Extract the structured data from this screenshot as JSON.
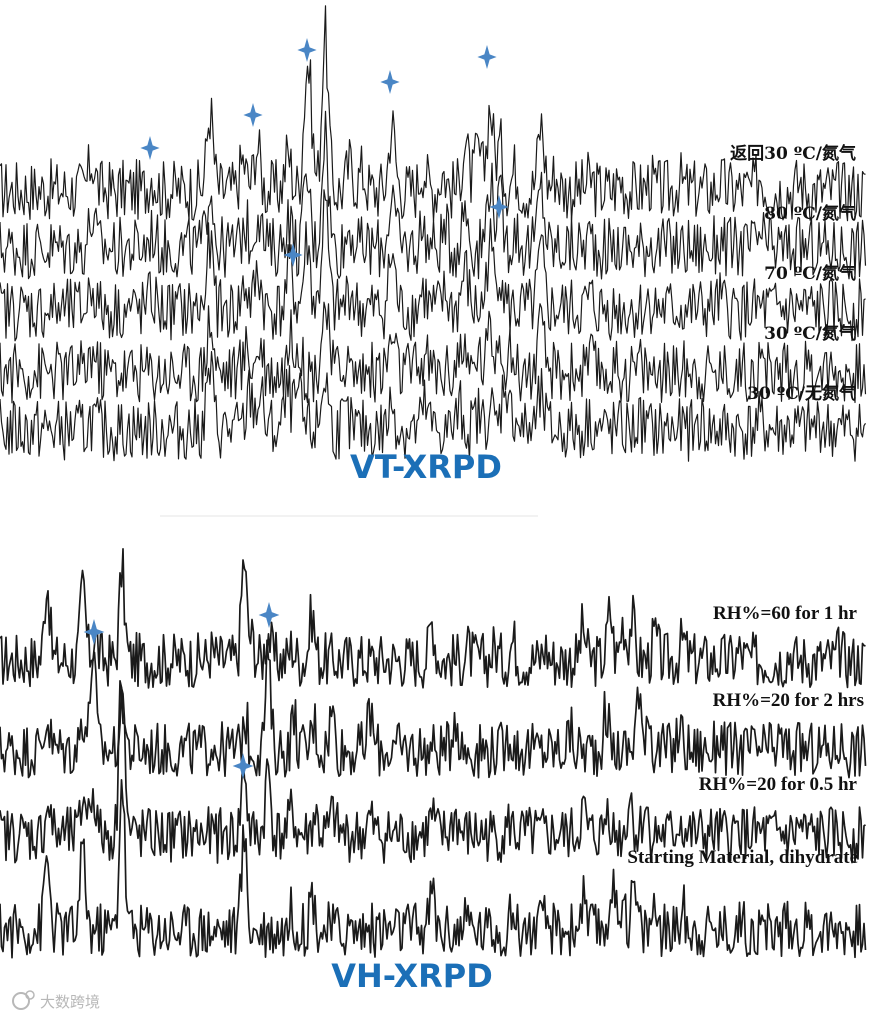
{
  "colors": {
    "trace": "#1a1a1a",
    "title": "#1b6fb7",
    "star": "#4a86c5",
    "watermark": "#b8b8b8"
  },
  "watermark": {
    "text": "大数跨境",
    "icon": "logo-icon"
  },
  "chart_data": [
    {
      "type": "line",
      "title": "VT-XRPD",
      "series": [
        {
          "name": "返回30 ºC/氮气",
          "peaks": [
            [
              92,
              0.55
            ],
            [
              152,
              0.3
            ],
            [
              210,
              1.5
            ],
            [
              243,
              0.55
            ],
            [
              257,
              0.85
            ],
            [
              288,
              0.7
            ],
            [
              306,
              1.6
            ],
            [
              310,
              1.35
            ],
            [
              325,
              3.0
            ],
            [
              350,
              0.5
            ],
            [
              362,
              0.35
            ],
            [
              392,
              1.25
            ],
            [
              423,
              0.45
            ],
            [
              443,
              0.35
            ],
            [
              465,
              0.9
            ],
            [
              478,
              0.75
            ],
            [
              490,
              1.6
            ],
            [
              500,
              0.85
            ],
            [
              515,
              0.4
            ],
            [
              541,
              1.25
            ],
            [
              555,
              0.3
            ],
            [
              590,
              0.2
            ],
            [
              620,
              0.2
            ],
            [
              650,
              0.15
            ],
            [
              680,
              0.15
            ],
            [
              720,
              0.15
            ],
            [
              760,
              0.3
            ],
            [
              800,
              0.15
            ]
          ]
        },
        {
          "name": "80 ºC/氮气",
          "peaks": [
            [
              92,
              0.55
            ],
            [
              152,
              0.3
            ],
            [
              210,
              1.3
            ],
            [
              245,
              0.45
            ],
            [
              258,
              0.75
            ],
            [
              288,
              0.6
            ],
            [
              307,
              1.35
            ],
            [
              325,
              2.3
            ],
            [
              350,
              0.4
            ],
            [
              392,
              1.05
            ],
            [
              423,
              0.4
            ],
            [
              445,
              0.3
            ],
            [
              465,
              0.8
            ],
            [
              490,
              1.35
            ],
            [
              500,
              0.85
            ],
            [
              515,
              0.35
            ],
            [
              541,
              1.15
            ],
            [
              590,
              0.2
            ],
            [
              650,
              0.15
            ],
            [
              720,
              0.15
            ],
            [
              760,
              0.25
            ]
          ]
        },
        {
          "name": "70 ºC/氮气",
          "peaks": [
            [
              92,
              0.5
            ],
            [
              152,
              0.25
            ],
            [
              210,
              1.2
            ],
            [
              245,
              0.45
            ],
            [
              258,
              0.7
            ],
            [
              290,
              0.8
            ],
            [
              307,
              1.3
            ],
            [
              325,
              2.0
            ],
            [
              350,
              0.4
            ],
            [
              392,
              1.05
            ],
            [
              423,
              0.35
            ],
            [
              445,
              0.25
            ],
            [
              465,
              0.75
            ],
            [
              490,
              1.25
            ],
            [
              500,
              0.8
            ],
            [
              541,
              1.05
            ],
            [
              590,
              0.2
            ],
            [
              650,
              0.15
            ],
            [
              720,
              0.15
            ]
          ]
        },
        {
          "name": "30 ºC/氮气",
          "peaks": [
            [
              92,
              0.4
            ],
            [
              210,
              1.0
            ],
            [
              247,
              0.45
            ],
            [
              260,
              0.55
            ],
            [
              290,
              0.55
            ],
            [
              297,
              0.6
            ],
            [
              325,
              1.3
            ],
            [
              345,
              0.25
            ],
            [
              392,
              0.65
            ],
            [
              425,
              0.3
            ],
            [
              460,
              0.45
            ],
            [
              478,
              0.35
            ],
            [
              490,
              0.75
            ],
            [
              500,
              0.75
            ],
            [
              512,
              0.3
            ],
            [
              541,
              0.75
            ],
            [
              590,
              0.2
            ],
            [
              640,
              0.15
            ],
            [
              690,
              0.15
            ],
            [
              760,
              0.15
            ],
            [
              820,
              0.15
            ]
          ]
        },
        {
          "name": "30 ºC/无氮气",
          "peaks": [
            [
              92,
              0.2
            ],
            [
              210,
              1.15
            ],
            [
              250,
              0.7
            ],
            [
              260,
              0.65
            ],
            [
              288,
              0.7
            ],
            [
              298,
              0.65
            ],
            [
              325,
              1.05
            ],
            [
              345,
              0.2
            ],
            [
              392,
              0.5
            ],
            [
              425,
              0.45
            ],
            [
              460,
              0.4
            ],
            [
              478,
              0.3
            ],
            [
              490,
              0.45
            ],
            [
              505,
              1.0
            ],
            [
              515,
              0.3
            ],
            [
              541,
              0.6
            ],
            [
              590,
              0.2
            ],
            [
              640,
              0.15
            ],
            [
              700,
              0.15
            ],
            [
              760,
              0.15
            ],
            [
              820,
              0.15
            ]
          ]
        }
      ]
    },
    {
      "type": "line",
      "title": "VH-XRPD",
      "series": [
        {
          "name": "RH%=60 for 1 hr",
          "peaks": [
            [
              47,
              1.15
            ],
            [
              83,
              1.05
            ],
            [
              95,
              0.35
            ],
            [
              122,
              1.3
            ],
            [
              212,
              0.12
            ],
            [
              244,
              1.45
            ],
            [
              252,
              0.3
            ],
            [
              268,
              0.4
            ],
            [
              292,
              0.2
            ],
            [
              312,
              0.65
            ],
            [
              432,
              0.55
            ],
            [
              468,
              0.15
            ],
            [
              495,
              0.18
            ],
            [
              513,
              0.28
            ],
            [
              545,
              0.18
            ],
            [
              583,
              0.45
            ],
            [
              610,
              0.7
            ],
            [
              623,
              0.55
            ],
            [
              632,
              0.6
            ],
            [
              655,
              0.35
            ],
            [
              683,
              0.28
            ],
            [
              740,
              0.12
            ],
            [
              790,
              0.12
            ],
            [
              840,
              0.12
            ]
          ]
        },
        {
          "name": "RH%=20 for 2 hrs",
          "peaks": [
            [
              47,
              0.45
            ],
            [
              83,
              0.5
            ],
            [
              93,
              1.45
            ],
            [
              122,
              0.8
            ],
            [
              212,
              0.12
            ],
            [
              245,
              0.45
            ],
            [
              268,
              1.3
            ],
            [
              294,
              0.45
            ],
            [
              314,
              0.4
            ],
            [
              332,
              0.55
            ],
            [
              370,
              0.55
            ],
            [
              455,
              0.55
            ],
            [
              510,
              0.25
            ],
            [
              570,
              0.25
            ],
            [
              606,
              0.55
            ],
            [
              638,
              0.75
            ],
            [
              648,
              0.6
            ],
            [
              680,
              0.3
            ],
            [
              720,
              0.2
            ],
            [
              780,
              0.12
            ],
            [
              840,
              0.12
            ]
          ]
        },
        {
          "name": "RH%=20 for 0.5 hr",
          "peaks": [
            [
              48,
              0.45
            ],
            [
              84,
              0.6
            ],
            [
              93,
              0.7
            ],
            [
              122,
              2.5
            ],
            [
              244,
              1.0
            ],
            [
              268,
              0.95
            ],
            [
              292,
              0.35
            ],
            [
              315,
              0.3
            ],
            [
              333,
              0.3
            ],
            [
              370,
              0.22
            ],
            [
              432,
              0.25
            ],
            [
              455,
              0.28
            ],
            [
              510,
              0.15
            ],
            [
              583,
              0.35
            ],
            [
              608,
              0.4
            ],
            [
              630,
              0.55
            ],
            [
              645,
              0.4
            ],
            [
              680,
              0.22
            ],
            [
              740,
              0.12
            ],
            [
              800,
              0.1
            ]
          ]
        },
        {
          "name": "Starting Material, dihydrate",
          "peaks": [
            [
              47,
              1.05
            ],
            [
              83,
              1.15
            ],
            [
              122,
              2.2
            ],
            [
              244,
              1.35
            ],
            [
              292,
              0.25
            ],
            [
              312,
              0.55
            ],
            [
              432,
              0.55
            ],
            [
              468,
              0.12
            ],
            [
              513,
              0.25
            ],
            [
              545,
              0.12
            ],
            [
              583,
              0.45
            ],
            [
              612,
              0.65
            ],
            [
              623,
              0.55
            ],
            [
              634,
              0.6
            ],
            [
              655,
              0.35
            ],
            [
              683,
              0.28
            ],
            [
              740,
              0.1
            ],
            [
              790,
              0.1
            ],
            [
              840,
              0.1
            ]
          ]
        }
      ]
    }
  ]
}
